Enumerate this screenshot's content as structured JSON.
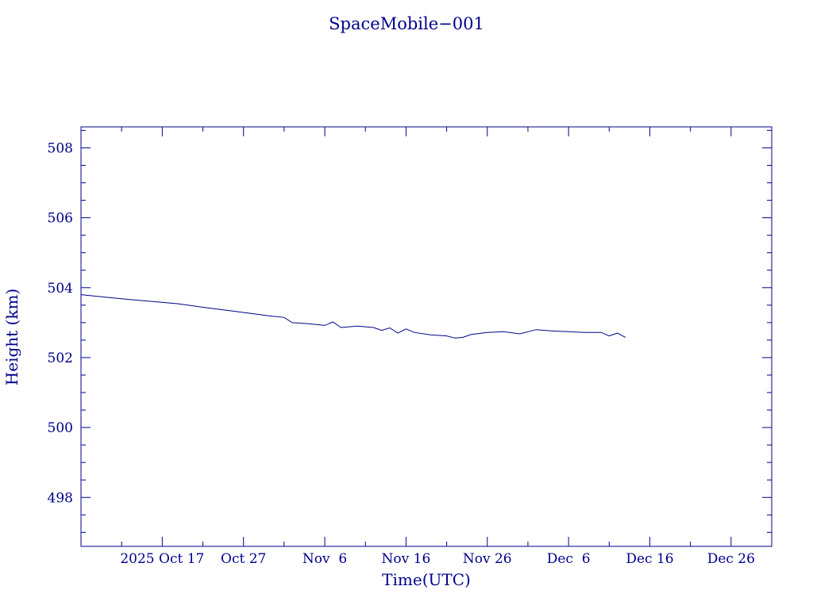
{
  "chart_data": {
    "type": "line",
    "title": "SpaceMobile−001",
    "xlabel": "Time(UTC)",
    "ylabel": "Height (km)",
    "x_axis": {
      "type": "date",
      "range": [
        "2025-10-07",
        "2025-12-31"
      ],
      "tick_labels": [
        {
          "date": "2025-10-17",
          "label": "2025 Oct 17"
        },
        {
          "date": "2025-10-27",
          "label": "Oct 27"
        },
        {
          "date": "2025-11-06",
          "label": "Nov  6"
        },
        {
          "date": "2025-11-16",
          "label": "Nov 16"
        },
        {
          "date": "2025-11-26",
          "label": "Nov 26"
        },
        {
          "date": "2025-12-06",
          "label": "Dec  6"
        },
        {
          "date": "2025-12-16",
          "label": "Dec 16"
        },
        {
          "date": "2025-12-26",
          "label": "Dec 26"
        }
      ]
    },
    "y_axis": {
      "range": [
        496.6,
        508.6
      ],
      "ticks": [
        498,
        500,
        502,
        504,
        506,
        508
      ]
    },
    "grid": false,
    "colors": {
      "axis": "#00008b",
      "series": "#00008b"
    },
    "series": [
      {
        "points": [
          [
            "2025-10-07",
            503.8
          ],
          [
            "2025-10-10",
            503.73
          ],
          [
            "2025-10-13",
            503.66
          ],
          [
            "2025-10-16",
            503.6
          ],
          [
            "2025-10-19",
            503.54
          ],
          [
            "2025-10-22",
            503.44
          ],
          [
            "2025-10-25",
            503.35
          ],
          [
            "2025-10-28",
            503.26
          ],
          [
            "2025-10-30",
            503.2
          ],
          [
            "2025-11-01",
            503.15
          ],
          [
            "2025-11-02",
            503.0
          ],
          [
            "2025-11-04",
            502.97
          ],
          [
            "2025-11-06",
            502.92
          ],
          [
            "2025-11-07",
            503.02
          ],
          [
            "2025-11-08",
            502.86
          ],
          [
            "2025-11-10",
            502.9
          ],
          [
            "2025-11-12",
            502.86
          ],
          [
            "2025-11-13",
            502.78
          ],
          [
            "2025-11-14",
            502.85
          ],
          [
            "2025-11-15",
            502.7
          ],
          [
            "2025-11-16",
            502.82
          ],
          [
            "2025-11-17",
            502.72
          ],
          [
            "2025-11-19",
            502.65
          ],
          [
            "2025-11-21",
            502.62
          ],
          [
            "2025-11-22",
            502.56
          ],
          [
            "2025-11-23",
            502.58
          ],
          [
            "2025-11-24",
            502.66
          ],
          [
            "2025-11-26",
            502.72
          ],
          [
            "2025-11-28",
            502.74
          ],
          [
            "2025-11-30",
            502.68
          ],
          [
            "2025-12-02",
            502.8
          ],
          [
            "2025-12-04",
            502.76
          ],
          [
            "2025-12-06",
            502.74
          ],
          [
            "2025-12-08",
            502.72
          ],
          [
            "2025-12-10",
            502.72
          ],
          [
            "2025-12-11",
            502.62
          ],
          [
            "2025-12-12",
            502.7
          ],
          [
            "2025-12-13",
            502.58
          ]
        ]
      }
    ]
  }
}
